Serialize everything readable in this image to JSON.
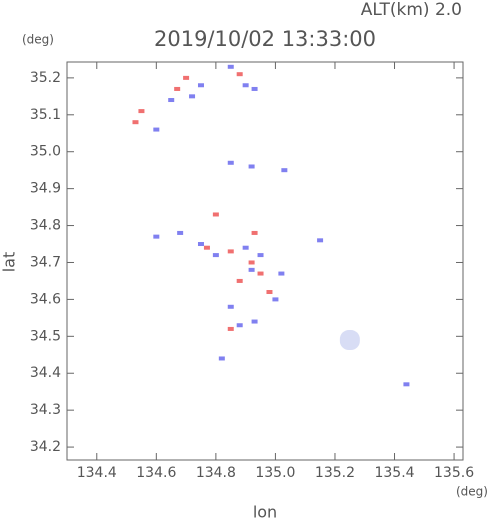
{
  "chart_data": {
    "type": "scatter",
    "title": "2019/10/02 13:33:00",
    "subtitle": "ALT(km) 2.0",
    "ylabel": "lat",
    "yunit": "(deg)",
    "xlabel": "lon",
    "xunit": "(deg)",
    "xlim": [
      134.3,
      135.63
    ],
    "ylim": [
      34.165,
      35.243
    ],
    "xticks": [
      134.4,
      134.6,
      134.8,
      {
        "value": 135.0,
        "label": "135.0"
      },
      135.2,
      135.4,
      135.6
    ],
    "yticks": [
      {
        "value": 34.2,
        "label": "34.2"
      },
      34.3,
      34.4,
      34.5,
      34.6,
      34.7,
      34.8,
      34.9,
      {
        "value": 35.0,
        "label": "35.0"
      },
      35.1,
      35.2
    ],
    "series": [
      {
        "color": "#f07070",
        "x": [
          134.53,
          134.55,
          134.67,
          134.7,
          134.88,
          134.8,
          134.77,
          134.85,
          134.92,
          134.95,
          134.98,
          134.85,
          134.93,
          134.88
        ],
        "y": [
          35.08,
          35.11,
          35.17,
          35.2,
          35.21,
          34.83,
          34.74,
          34.73,
          34.7,
          34.67,
          34.62,
          34.52,
          34.78,
          34.65
        ]
      },
      {
        "color": "#8080f0",
        "x": [
          134.6,
          134.65,
          134.72,
          134.75,
          134.85,
          134.9,
          134.93,
          134.85,
          134.92,
          135.03,
          134.6,
          134.68,
          134.75,
          134.8,
          134.9,
          134.95,
          134.92,
          135.02,
          135.0,
          134.85,
          134.88,
          134.93,
          134.82,
          135.15,
          135.44
        ],
        "y": [
          35.06,
          35.14,
          35.15,
          35.18,
          35.23,
          35.18,
          35.17,
          34.97,
          34.96,
          34.95,
          34.77,
          34.78,
          34.75,
          34.72,
          34.74,
          34.72,
          34.68,
          34.67,
          34.6,
          34.58,
          34.53,
          34.54,
          34.44,
          34.76,
          34.37
        ]
      },
      {
        "color": "#d8ddf5",
        "x": [
          135.25
        ],
        "y": [
          34.49
        ]
      }
    ]
  }
}
